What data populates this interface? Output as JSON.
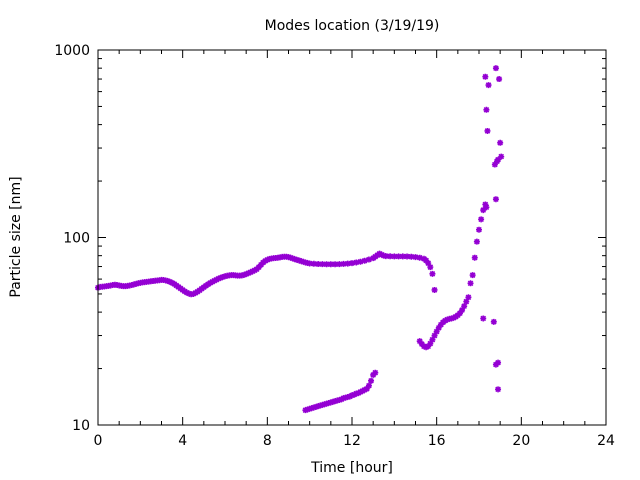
{
  "chart_data": {
    "type": "scatter",
    "title": "Modes location (3/19/19)",
    "xlabel": "Time [hour]",
    "ylabel": "Particle size [nm]",
    "xlim": [
      0,
      24
    ],
    "ylim": [
      10,
      1000
    ],
    "yscale": "log",
    "xticks": [
      0,
      4,
      8,
      12,
      16,
      20,
      24
    ],
    "yticks": [
      10,
      100,
      1000
    ],
    "legend": "none",
    "grid": false,
    "marker": "star",
    "colors": {
      "marker": "#9400D3",
      "axis": "#000000",
      "background": "#ffffff"
    },
    "series": [
      {
        "points": [
          [
            0.0,
            54
          ],
          [
            0.1,
            54.5
          ],
          [
            0.2,
            54.6
          ],
          [
            0.3,
            54.8
          ],
          [
            0.4,
            55
          ],
          [
            0.5,
            55.2
          ],
          [
            0.6,
            55.5
          ],
          [
            0.7,
            55.8
          ],
          [
            0.8,
            56
          ],
          [
            0.9,
            55.8
          ],
          [
            1.0,
            55.5
          ],
          [
            1.1,
            55.2
          ],
          [
            1.2,
            55
          ],
          [
            1.3,
            55
          ],
          [
            1.4,
            55.2
          ],
          [
            1.5,
            55.5
          ],
          [
            1.6,
            55.8
          ],
          [
            1.7,
            56.2
          ],
          [
            1.8,
            56.6
          ],
          [
            1.9,
            57
          ],
          [
            2.0,
            57.3
          ],
          [
            2.1,
            57.6
          ],
          [
            2.2,
            57.8
          ],
          [
            2.3,
            58
          ],
          [
            2.4,
            58.2
          ],
          [
            2.5,
            58.4
          ],
          [
            2.6,
            58.6
          ],
          [
            2.7,
            58.8
          ],
          [
            2.8,
            59
          ],
          [
            2.9,
            59.2
          ],
          [
            3.0,
            59.4
          ],
          [
            3.1,
            59.3
          ],
          [
            3.2,
            59
          ],
          [
            3.3,
            58.6
          ],
          [
            3.4,
            58
          ],
          [
            3.5,
            57.3
          ],
          [
            3.6,
            56.5
          ],
          [
            3.7,
            55.5
          ],
          [
            3.8,
            54.5
          ],
          [
            3.9,
            53.5
          ],
          [
            4.0,
            52.5
          ],
          [
            4.1,
            51.6
          ],
          [
            4.2,
            50.8
          ],
          [
            4.3,
            50.2
          ],
          [
            4.4,
            49.8
          ],
          [
            4.5,
            50
          ],
          [
            4.6,
            50.6
          ],
          [
            4.7,
            51.4
          ],
          [
            4.8,
            52.3
          ],
          [
            4.9,
            53.3
          ],
          [
            5.0,
            54.3
          ],
          [
            5.1,
            55.3
          ],
          [
            5.2,
            56.3
          ],
          [
            5.3,
            57.2
          ],
          [
            5.4,
            58
          ],
          [
            5.5,
            58.8
          ],
          [
            5.6,
            59.6
          ],
          [
            5.7,
            60.4
          ],
          [
            5.8,
            61
          ],
          [
            5.9,
            61.6
          ],
          [
            6.0,
            62.1
          ],
          [
            6.1,
            62.5
          ],
          [
            6.2,
            62.8
          ],
          [
            6.3,
            63
          ],
          [
            6.4,
            63
          ],
          [
            6.5,
            62.8
          ],
          [
            6.6,
            62.6
          ],
          [
            6.7,
            62.6
          ],
          [
            6.8,
            62.8
          ],
          [
            6.9,
            63.2
          ],
          [
            7.0,
            63.8
          ],
          [
            7.1,
            64.5
          ],
          [
            7.2,
            65.2
          ],
          [
            7.3,
            66
          ],
          [
            7.4,
            66.8
          ],
          [
            7.5,
            67.8
          ],
          [
            7.6,
            69.5
          ],
          [
            7.7,
            71.5
          ],
          [
            7.8,
            73.5
          ],
          [
            7.9,
            75
          ],
          [
            8.0,
            76
          ],
          [
            8.1,
            76.8
          ],
          [
            8.2,
            77.3
          ],
          [
            8.3,
            77.6
          ],
          [
            8.4,
            77.8
          ],
          [
            8.5,
            78
          ],
          [
            8.6,
            78.4
          ],
          [
            8.7,
            78.8
          ],
          [
            8.8,
            79
          ],
          [
            8.9,
            79
          ],
          [
            9.0,
            78.6
          ],
          [
            9.1,
            78
          ],
          [
            9.2,
            77.3
          ],
          [
            9.3,
            76.6
          ],
          [
            9.4,
            76
          ],
          [
            9.5,
            75.4
          ],
          [
            9.6,
            74.8
          ],
          [
            9.7,
            74.2
          ],
          [
            9.8,
            73.6
          ],
          [
            9.9,
            73.1
          ],
          [
            10.0,
            72.7
          ],
          [
            10.2,
            72.4
          ],
          [
            10.4,
            72.2
          ],
          [
            10.6,
            72.1
          ],
          [
            10.8,
            72
          ],
          [
            11.0,
            72
          ],
          [
            11.2,
            72
          ],
          [
            11.4,
            72.1
          ],
          [
            11.6,
            72.3
          ],
          [
            11.8,
            72.6
          ],
          [
            12.0,
            73
          ],
          [
            12.2,
            73.6
          ],
          [
            12.4,
            74.3
          ],
          [
            12.6,
            75.2
          ],
          [
            12.8,
            76.3
          ],
          [
            13.0,
            77.6
          ],
          [
            13.1,
            79
          ],
          [
            13.2,
            80.5
          ],
          [
            13.3,
            82
          ],
          [
            13.4,
            81
          ],
          [
            13.5,
            80
          ],
          [
            13.6,
            79.6
          ],
          [
            13.8,
            79.4
          ],
          [
            14.0,
            79.3
          ],
          [
            14.2,
            79.3
          ],
          [
            14.4,
            79.3
          ],
          [
            14.6,
            79.2
          ],
          [
            14.8,
            79
          ],
          [
            15.0,
            78.6
          ],
          [
            15.2,
            78
          ],
          [
            15.4,
            77
          ],
          [
            15.5,
            75.5
          ],
          [
            15.6,
            73
          ],
          [
            15.7,
            69.5
          ],
          [
            15.8,
            64
          ],
          [
            15.9,
            52.5
          ]
        ]
      },
      {
        "points": [
          [
            9.8,
            12
          ],
          [
            9.9,
            12.1
          ],
          [
            10.0,
            12.2
          ],
          [
            10.1,
            12.3
          ],
          [
            10.2,
            12.4
          ],
          [
            10.3,
            12.5
          ],
          [
            10.4,
            12.6
          ],
          [
            10.5,
            12.7
          ],
          [
            10.6,
            12.8
          ],
          [
            10.7,
            12.9
          ],
          [
            10.8,
            13
          ],
          [
            10.9,
            13.1
          ],
          [
            11.0,
            13.2
          ],
          [
            11.1,
            13.3
          ],
          [
            11.2,
            13.4
          ],
          [
            11.3,
            13.5
          ],
          [
            11.4,
            13.6
          ],
          [
            11.5,
            13.7
          ],
          [
            11.6,
            13.9
          ],
          [
            11.7,
            14
          ],
          [
            11.8,
            14.1
          ],
          [
            11.9,
            14.2
          ],
          [
            12.0,
            14.4
          ],
          [
            12.1,
            14.5
          ],
          [
            12.2,
            14.7
          ],
          [
            12.3,
            14.8
          ],
          [
            12.4,
            15
          ],
          [
            12.5,
            15.2
          ],
          [
            12.6,
            15.4
          ],
          [
            12.7,
            15.6
          ],
          [
            12.8,
            16.2
          ],
          [
            12.9,
            17.2
          ],
          [
            13.0,
            18.5
          ],
          [
            13.1,
            19
          ]
        ]
      },
      {
        "points": [
          [
            15.2,
            28
          ],
          [
            15.3,
            27
          ],
          [
            15.4,
            26.3
          ],
          [
            15.5,
            26
          ],
          [
            15.6,
            26.3
          ],
          [
            15.7,
            27.2
          ],
          [
            15.8,
            28.5
          ],
          [
            15.9,
            30
          ],
          [
            16.0,
            31.5
          ],
          [
            16.1,
            33
          ],
          [
            16.2,
            34.3
          ],
          [
            16.3,
            35.3
          ],
          [
            16.4,
            36
          ],
          [
            16.5,
            36.5
          ],
          [
            16.6,
            36.8
          ],
          [
            16.7,
            37
          ],
          [
            16.8,
            37.3
          ],
          [
            16.9,
            37.8
          ],
          [
            17.0,
            38.5
          ],
          [
            17.1,
            39.5
          ],
          [
            17.2,
            41
          ],
          [
            17.3,
            43
          ],
          [
            17.4,
            45.5
          ],
          [
            17.5,
            48
          ],
          [
            17.6,
            57
          ],
          [
            17.7,
            63
          ],
          [
            17.8,
            78
          ],
          [
            17.9,
            95
          ],
          [
            18.0,
            110
          ],
          [
            18.1,
            125
          ],
          [
            18.2,
            140
          ],
          [
            18.3,
            150
          ],
          [
            18.35,
            145
          ]
        ]
      },
      {
        "points": [
          [
            18.2,
            37
          ],
          [
            18.3,
            720
          ],
          [
            18.35,
            480
          ],
          [
            18.4,
            370
          ],
          [
            18.45,
            650
          ],
          [
            18.7,
            35.5
          ],
          [
            18.75,
            245
          ],
          [
            18.8,
            800
          ],
          [
            18.85,
            255
          ],
          [
            18.9,
            260
          ],
          [
            18.95,
            700
          ],
          [
            19.0,
            320
          ],
          [
            19.05,
            270
          ],
          [
            18.8,
            160
          ],
          [
            18.8,
            21
          ],
          [
            18.9,
            21.5
          ],
          [
            18.9,
            15.5
          ]
        ]
      }
    ]
  }
}
